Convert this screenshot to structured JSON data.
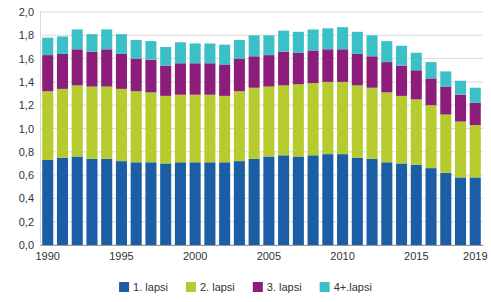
{
  "chart_data": {
    "type": "bar",
    "stacked": true,
    "grid": true,
    "legend": "bottom",
    "categories": [
      1990,
      null,
      null,
      null,
      null,
      1995,
      null,
      null,
      null,
      null,
      2000,
      null,
      null,
      null,
      null,
      2005,
      null,
      null,
      null,
      null,
      2010,
      null,
      null,
      null,
      null,
      2015,
      null,
      null,
      null,
      2019
    ],
    "series": [
      {
        "name": "1. lapsi",
        "color": "#1b5ea6",
        "values": [
          0.73,
          0.75,
          0.76,
          0.74,
          0.74,
          0.72,
          0.71,
          0.71,
          0.7,
          0.71,
          0.71,
          0.71,
          0.71,
          0.72,
          0.74,
          0.76,
          0.77,
          0.76,
          0.77,
          0.78,
          0.78,
          0.75,
          0.74,
          0.71,
          0.7,
          0.69,
          0.66,
          0.62,
          0.58,
          0.58
        ]
      },
      {
        "name": "2. lapsi",
        "color": "#b5cb2e",
        "values": [
          0.59,
          0.59,
          0.61,
          0.62,
          0.62,
          0.62,
          0.61,
          0.6,
          0.58,
          0.58,
          0.58,
          0.58,
          0.57,
          0.6,
          0.61,
          0.6,
          0.6,
          0.62,
          0.62,
          0.62,
          0.62,
          0.62,
          0.61,
          0.6,
          0.58,
          0.56,
          0.54,
          0.5,
          0.48,
          0.45
        ]
      },
      {
        "name": "3. lapsi",
        "color": "#8c1d7a",
        "values": [
          0.31,
          0.3,
          0.31,
          0.3,
          0.32,
          0.3,
          0.28,
          0.28,
          0.26,
          0.27,
          0.27,
          0.27,
          0.27,
          0.28,
          0.27,
          0.27,
          0.29,
          0.27,
          0.28,
          0.28,
          0.28,
          0.27,
          0.27,
          0.26,
          0.26,
          0.25,
          0.23,
          0.24,
          0.23,
          0.19
        ]
      },
      {
        "name": "4+.lapsi",
        "color": "#3cc0c8",
        "values": [
          0.15,
          0.15,
          0.17,
          0.15,
          0.17,
          0.17,
          0.16,
          0.16,
          0.16,
          0.18,
          0.17,
          0.17,
          0.17,
          0.16,
          0.18,
          0.17,
          0.18,
          0.18,
          0.18,
          0.18,
          0.19,
          0.19,
          0.18,
          0.18,
          0.17,
          0.15,
          0.14,
          0.13,
          0.12,
          0.13
        ]
      }
    ],
    "ylim": [
      0,
      2
    ],
    "yticks": [
      {
        "value": 0,
        "label": "0,0"
      },
      {
        "value": 0.2,
        "label": "0,2"
      },
      {
        "value": 0.4,
        "label": "0,4"
      },
      {
        "value": 0.6,
        "label": "0,6"
      },
      {
        "value": 0.8,
        "label": "0,8"
      },
      {
        "value": 1.0,
        "label": "1,0"
      },
      {
        "value": 1.2,
        "label": "1,2"
      },
      {
        "value": 1.4,
        "label": "1,4"
      },
      {
        "value": 1.6,
        "label": "1,6"
      },
      {
        "value": 1.8,
        "label": "1,8"
      },
      {
        "value": 2.0,
        "label": "2,0"
      }
    ]
  }
}
